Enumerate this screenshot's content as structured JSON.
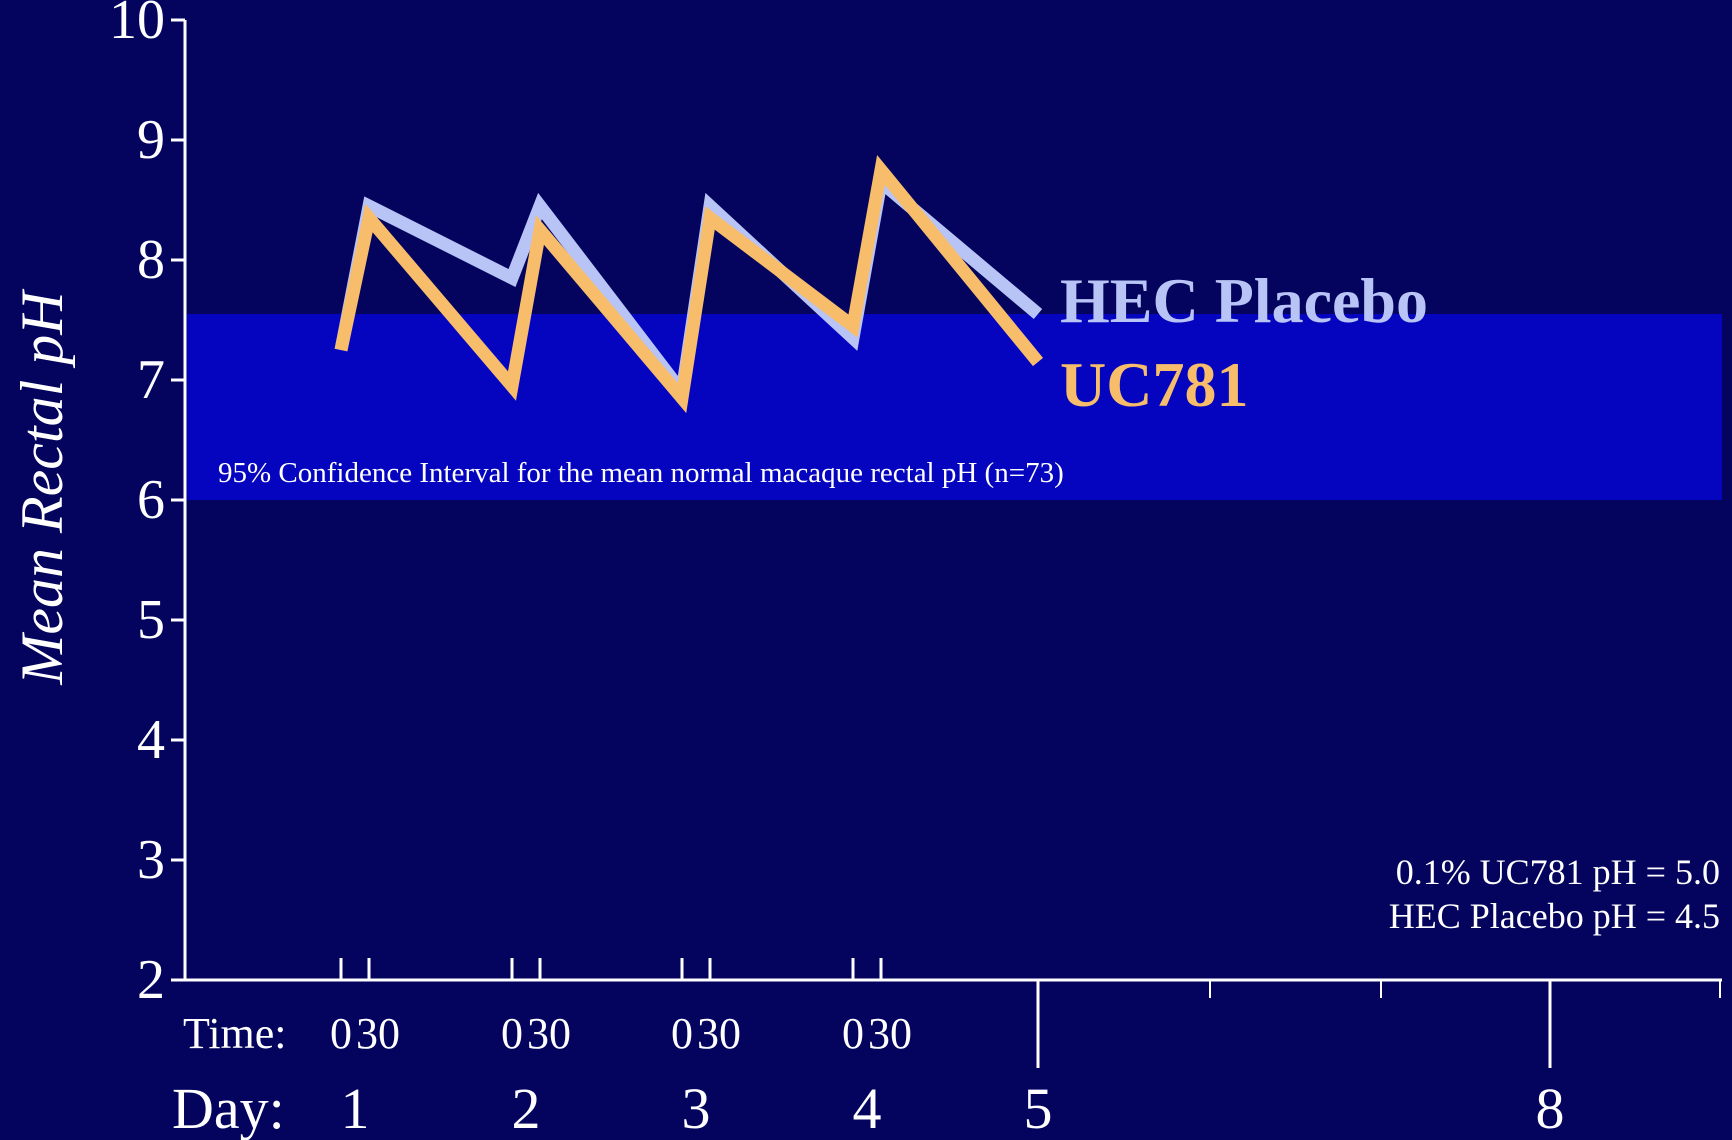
{
  "chart_data": {
    "type": "line",
    "ylabel": "Mean Rectal pH",
    "ylim": [
      2,
      10
    ],
    "y_ticks": [
      "2",
      "3",
      "4",
      "5",
      "6",
      "7",
      "8",
      "9",
      "10"
    ],
    "time_label": "Time:",
    "day_label": "Day:",
    "x_groups": [
      {
        "day": "1",
        "times": [
          "0",
          "30"
        ]
      },
      {
        "day": "2",
        "times": [
          "0",
          "30"
        ]
      },
      {
        "day": "3",
        "times": [
          "0",
          "30"
        ]
      },
      {
        "day": "4",
        "times": [
          "0",
          "30"
        ]
      },
      {
        "day": "5",
        "times": []
      },
      {
        "day": "8",
        "times": []
      }
    ],
    "x_points": [
      "Day 1 0",
      "Day 1 30",
      "Day 2 0",
      "Day 2 30",
      "Day 3 0",
      "Day 3 30",
      "Day 4 0",
      "Day 4 30",
      "Day 5"
    ],
    "series": [
      {
        "name": "HEC Placebo",
        "color": "#b8c4f6",
        "values": [
          7.25,
          8.45,
          7.85,
          8.45,
          6.9,
          8.45,
          7.35,
          8.65,
          7.55
        ]
      },
      {
        "name": "UC781",
        "color": "#f7bd6b",
        "values": [
          7.25,
          8.35,
          6.95,
          8.25,
          6.85,
          8.35,
          7.45,
          8.75,
          7.15
        ]
      }
    ],
    "band": {
      "y_range": [
        6.0,
        7.55
      ],
      "color": "#0505bf",
      "label": "95% Confidence Interval for the mean normal macaque rectal pH (n=73)"
    },
    "annotations": [
      "0.1% UC781 pH = 5.0",
      "HEC Placebo pH = 4.5"
    ]
  }
}
